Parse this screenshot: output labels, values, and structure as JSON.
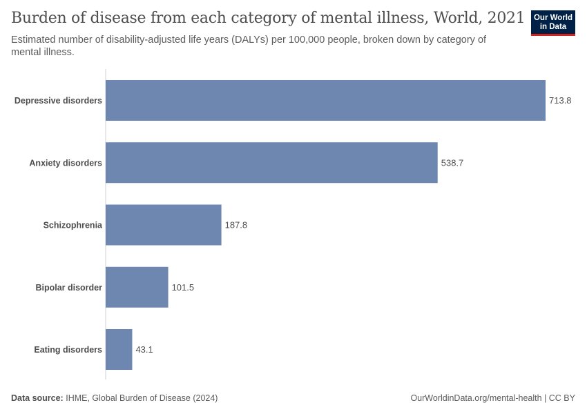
{
  "header": {
    "title": "Burden of disease from each category of mental illness, World, 2021",
    "subtitle": "Estimated number of disability-adjusted life years (DALYs) per 100,000 people, broken down by category of mental illness.",
    "logo": "Our World in Data"
  },
  "footer": {
    "source_label": "Data source:",
    "source": "IHME, Global Burden of Disease (2024)",
    "url": "OurWorldinData.org/mental-health | CC BY"
  },
  "colors": {
    "bar": "#6e87b1",
    "logo_bg": "#002147",
    "logo_accent": "#ce261e"
  },
  "chart_data": {
    "type": "bar",
    "orientation": "horizontal",
    "categories": [
      "Depressive disorders",
      "Anxiety disorders",
      "Schizophrenia",
      "Bipolar disorder",
      "Eating disorders"
    ],
    "values": [
      713.8,
      538.7,
      187.8,
      101.5,
      43.1
    ],
    "xlim": [
      0,
      713.8
    ],
    "grid": false,
    "legend": "none"
  }
}
